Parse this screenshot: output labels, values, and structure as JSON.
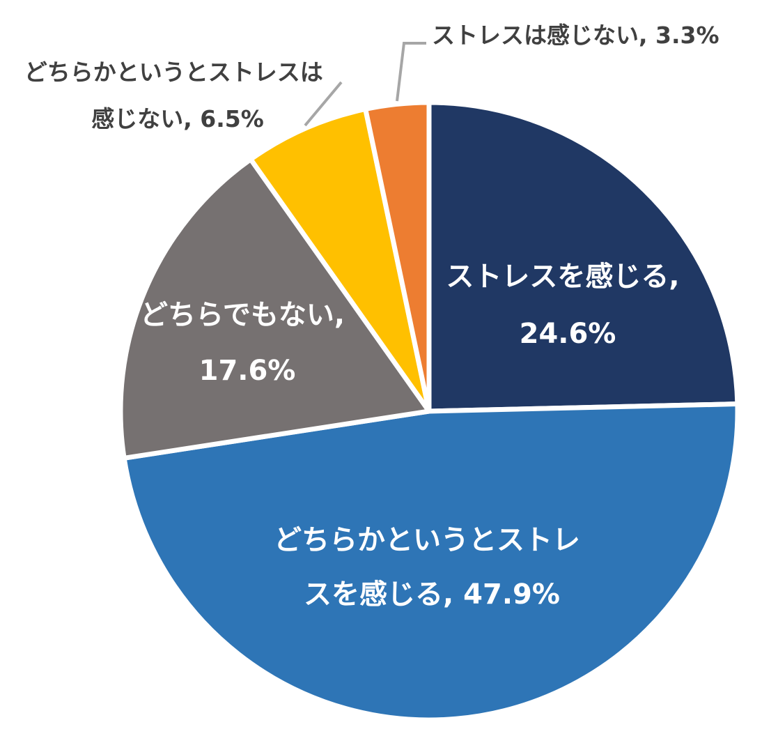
{
  "chart_data": {
    "type": "pie",
    "title": "",
    "start": "12 o'clock, clockwise",
    "slices": [
      {
        "label": "ストレスを感じる",
        "value": 24.6,
        "color": "#203864",
        "label_lines": [
          "ストレスを感じる,",
          "24.6%"
        ]
      },
      {
        "label": "どちらかというとストレスを感じる",
        "value": 47.9,
        "color": "#2E75B6",
        "label_lines": [
          "どちらかというとストレ",
          "スを感じる, 47.9%"
        ]
      },
      {
        "label": "どちらでもない",
        "value": 17.6,
        "color": "#767171",
        "label_lines": [
          "どちらでもない,",
          "17.6%"
        ]
      },
      {
        "label": "どちらかというとストレスは感じない",
        "value": 6.5,
        "color": "#FFC000",
        "label_lines": [
          "どちらかというとストレスは",
          "感じない, 6.5%"
        ]
      },
      {
        "label": "ストレスは感じない",
        "value": 3.3,
        "color": "#ED7D31",
        "label_lines": [
          "ストレスは感じない, 3.3%"
        ]
      }
    ],
    "leader_line_color": "#A6A6A6"
  }
}
